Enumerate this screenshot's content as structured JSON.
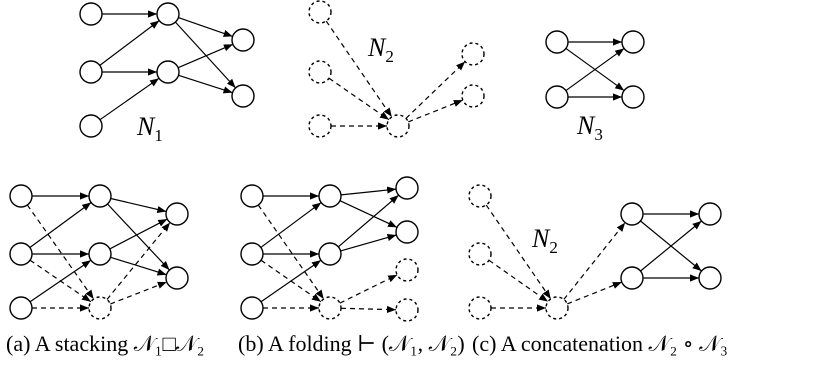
{
  "network_labels": {
    "n1": {
      "main": "N",
      "sub": "1"
    },
    "n2": {
      "main": "N",
      "sub": "2"
    },
    "n3": {
      "main": "N",
      "sub": "3"
    }
  },
  "captions": {
    "a": "(a) A stacking 𝒩₁□𝒩₂",
    "b": "(b) A folding ⊢ (𝒩₁, 𝒩₂)",
    "c": "(c) A concatenation 𝒩₂ ∘ 𝒩₃"
  }
}
